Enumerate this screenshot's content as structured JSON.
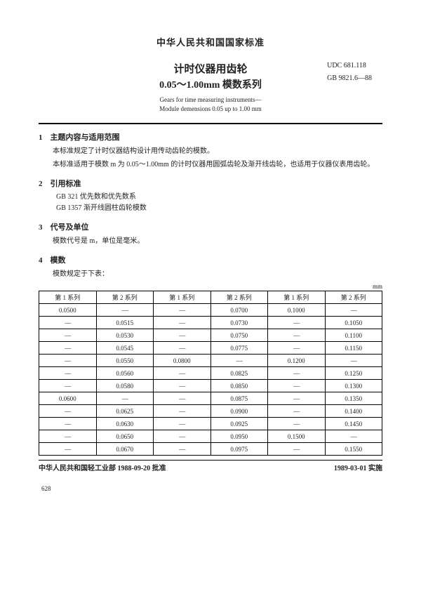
{
  "header": "中华人民共和国国家标准",
  "title_cn_1": "计时仪器用齿轮",
  "title_cn_2": "0.05～1.00mm 模数系列",
  "code_udc": "UDC 681.118",
  "code_gb": "GB 9821.6—88",
  "title_en_1": "Gears for time measuring instruments—",
  "title_en_2": "Module demensions 0.05 up to 1.00 mm",
  "sec1_head": "1　主题内容与适用范围",
  "sec1_p1": "本标准规定了计时仪器结构设计用传动齿轮的模数。",
  "sec1_p2": "本标准适用于模数 m 为 0.05～1.00mm 的计时仪器用圆弧齿轮及渐开线齿轮，也适用于仪器仪表用齿轮。",
  "sec2_head": "2　引用标准",
  "ref1": "GB 321 优先数和优先数系",
  "ref2": "GB 1357 渐开线圆柱齿轮模数",
  "sec3_head": "3　代号及单位",
  "sec3_p1": "模数代号是 m，单位是毫米。",
  "sec4_head": "4　模数",
  "sec4_p1": "模数规定于下表：",
  "unit": "mm",
  "col_headers": [
    "第 1 系列",
    "第 2 系列",
    "第 1 系列",
    "第 2 系列",
    "第 1 系列",
    "第 2 系列"
  ],
  "rows": [
    [
      "0.0500",
      "—",
      "—",
      "0.0700",
      "0.1000",
      "—"
    ],
    [
      "—",
      "0.0515",
      "—",
      "0.0730",
      "—",
      "0.1050"
    ],
    [
      "—",
      "0.0530",
      "—",
      "0.0750",
      "—",
      "0.1100"
    ],
    [
      "—",
      "0.0545",
      "—",
      "0.0775",
      "—",
      "0.1150"
    ],
    [
      "—",
      "0.0550",
      "0.0800",
      "—",
      "0.1200",
      "—"
    ],
    [
      "—",
      "0.0560",
      "—",
      "0.0825",
      "—",
      "0.1250"
    ],
    [
      "—",
      "0.0580",
      "—",
      "0.0850",
      "—",
      "0.1300"
    ],
    [
      "0.0600",
      "—",
      "—",
      "0.0875",
      "—",
      "0.1350"
    ],
    [
      "—",
      "0.0625",
      "—",
      "0.0900",
      "—",
      "0.1400"
    ],
    [
      "—",
      "0.0630",
      "—",
      "0.0925",
      "—",
      "0.1450"
    ],
    [
      "—",
      "0.0650",
      "—",
      "0.0950",
      "0.1500",
      "—"
    ],
    [
      "—",
      "0.0670",
      "—",
      "0.0975",
      "—",
      "0.1550"
    ]
  ],
  "footer_left": "中华人民共和国轻工业部 1988-09-20 批准",
  "footer_right": "1989-03-01 实施",
  "page_number": "628"
}
